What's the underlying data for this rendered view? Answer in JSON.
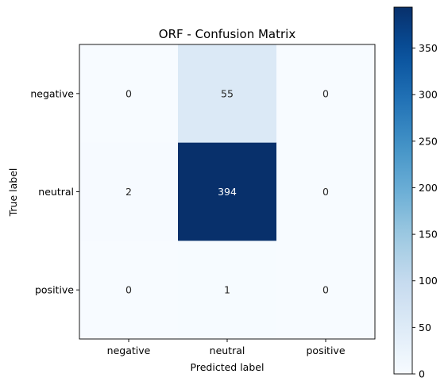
{
  "chart_data": {
    "type": "heatmap",
    "title": "ORF - Confusion Matrix",
    "xlabel": "Predicted label",
    "ylabel": "True label",
    "x_categories": [
      "negative",
      "neutral",
      "positive"
    ],
    "y_categories": [
      "negative",
      "neutral",
      "positive"
    ],
    "values": [
      [
        0,
        55,
        0
      ],
      [
        2,
        394,
        0
      ],
      [
        0,
        1,
        0
      ]
    ],
    "colormap": "Blues",
    "colorbar": {
      "range": [
        0,
        394
      ],
      "ticks": [
        0,
        50,
        100,
        150,
        200,
        250,
        300,
        350
      ]
    },
    "text_color_dark": "#262626",
    "text_color_light": "#ffffff"
  }
}
